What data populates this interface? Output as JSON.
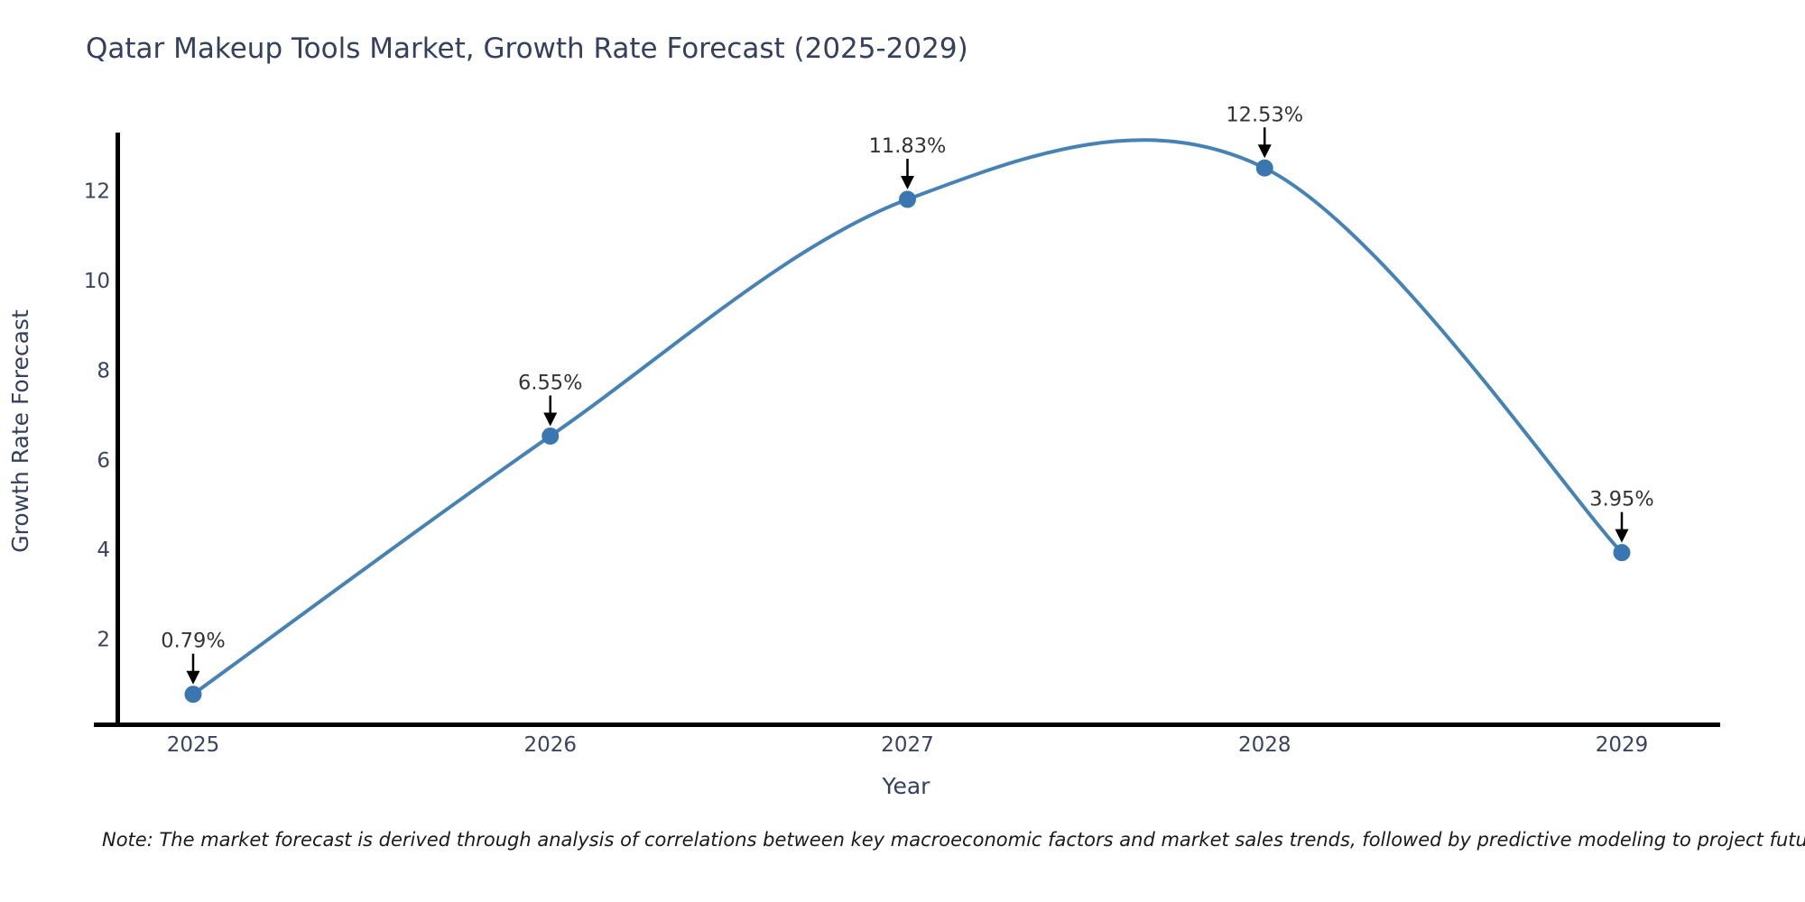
{
  "title": "Qatar Makeup Tools Market, Growth Rate Forecast (2025-2029)",
  "note": "Note: The market forecast is derived through analysis of correlations between key macroeconomic factors and market sales trends, followed by predictive modeling to project future sales.",
  "chart_data": {
    "type": "line",
    "title": "Qatar Makeup Tools Market, Growth Rate Forecast (2025-2029)",
    "xlabel": "Year",
    "ylabel": "Growth Rate Forecast",
    "x": [
      2025,
      2026,
      2027,
      2028,
      2029
    ],
    "values": [
      0.79,
      6.55,
      11.83,
      12.53,
      3.95
    ],
    "point_labels": [
      "0.79%",
      "6.55%",
      "11.83%",
      "12.53%",
      "3.95%"
    ],
    "xtick_labels": [
      "2025",
      "2026",
      "2027",
      "2028",
      "2029"
    ],
    "yticks": [
      2,
      4,
      6,
      8,
      10,
      12
    ],
    "ylim": [
      0.1,
      13.3
    ],
    "xlim": [
      2024.73,
      2029.28
    ],
    "smoothing": "spline",
    "grid": false,
    "legend": "none",
    "annotations": "value labels with downward arrows above each point",
    "line_color": "#4682b4",
    "marker_color": "#3a77b0",
    "arrow_color": "#000000",
    "axis_color": "#000000",
    "title_color": "#35405d",
    "annotation_text_color": "#333333"
  }
}
